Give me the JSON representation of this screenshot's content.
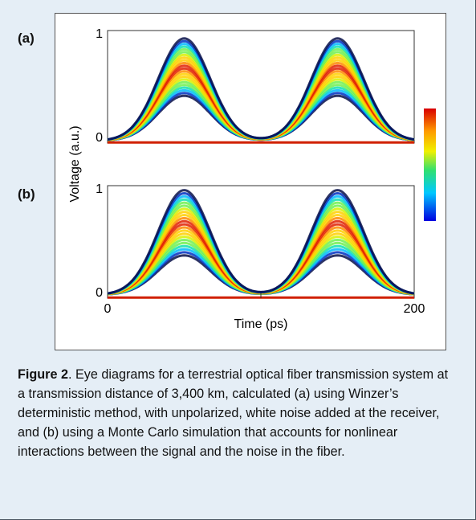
{
  "figure": {
    "label_a": "(a)",
    "label_b": "(b)",
    "caption_label": "Figure 2",
    "caption_text": ". Eye diagrams for a terrestrial optical fiber transmission system at a transmission distance of 3,400 km, calculated (a) using Winzer’s deterministic method, with unpolarized, white noise added at the receiver, and (b) using a Monte Carlo simulation that accounts for nonlinear interactions between the signal and the noise in the fiber."
  },
  "chart_data": [
    {
      "type": "line",
      "panel": "(a)",
      "xlabel": "Time (ps)",
      "ylabel": "Voltage (a.u.)",
      "xlim": [
        0,
        200
      ],
      "ylim": [
        0,
        1
      ],
      "x_ticks": [
        "0",
        "200"
      ],
      "y_ticks": [
        "0",
        "1"
      ],
      "pulse_centers_ps": [
        50,
        150
      ],
      "peak_voltage_range": [
        0.42,
        0.93
      ],
      "baseline_voltage": 0.02,
      "colormap": "jet"
    },
    {
      "type": "line",
      "panel": "(b)",
      "xlabel": "Time (ps)",
      "ylabel": "Voltage (a.u.)",
      "xlim": [
        0,
        200
      ],
      "ylim": [
        0,
        1
      ],
      "x_ticks": [
        "0",
        "200"
      ],
      "y_ticks": [
        "0",
        "1"
      ],
      "pulse_centers_ps": [
        50,
        150
      ],
      "peak_voltage_range": [
        0.38,
        0.96
      ],
      "baseline_voltage": 0.03,
      "colormap": "jet"
    }
  ]
}
